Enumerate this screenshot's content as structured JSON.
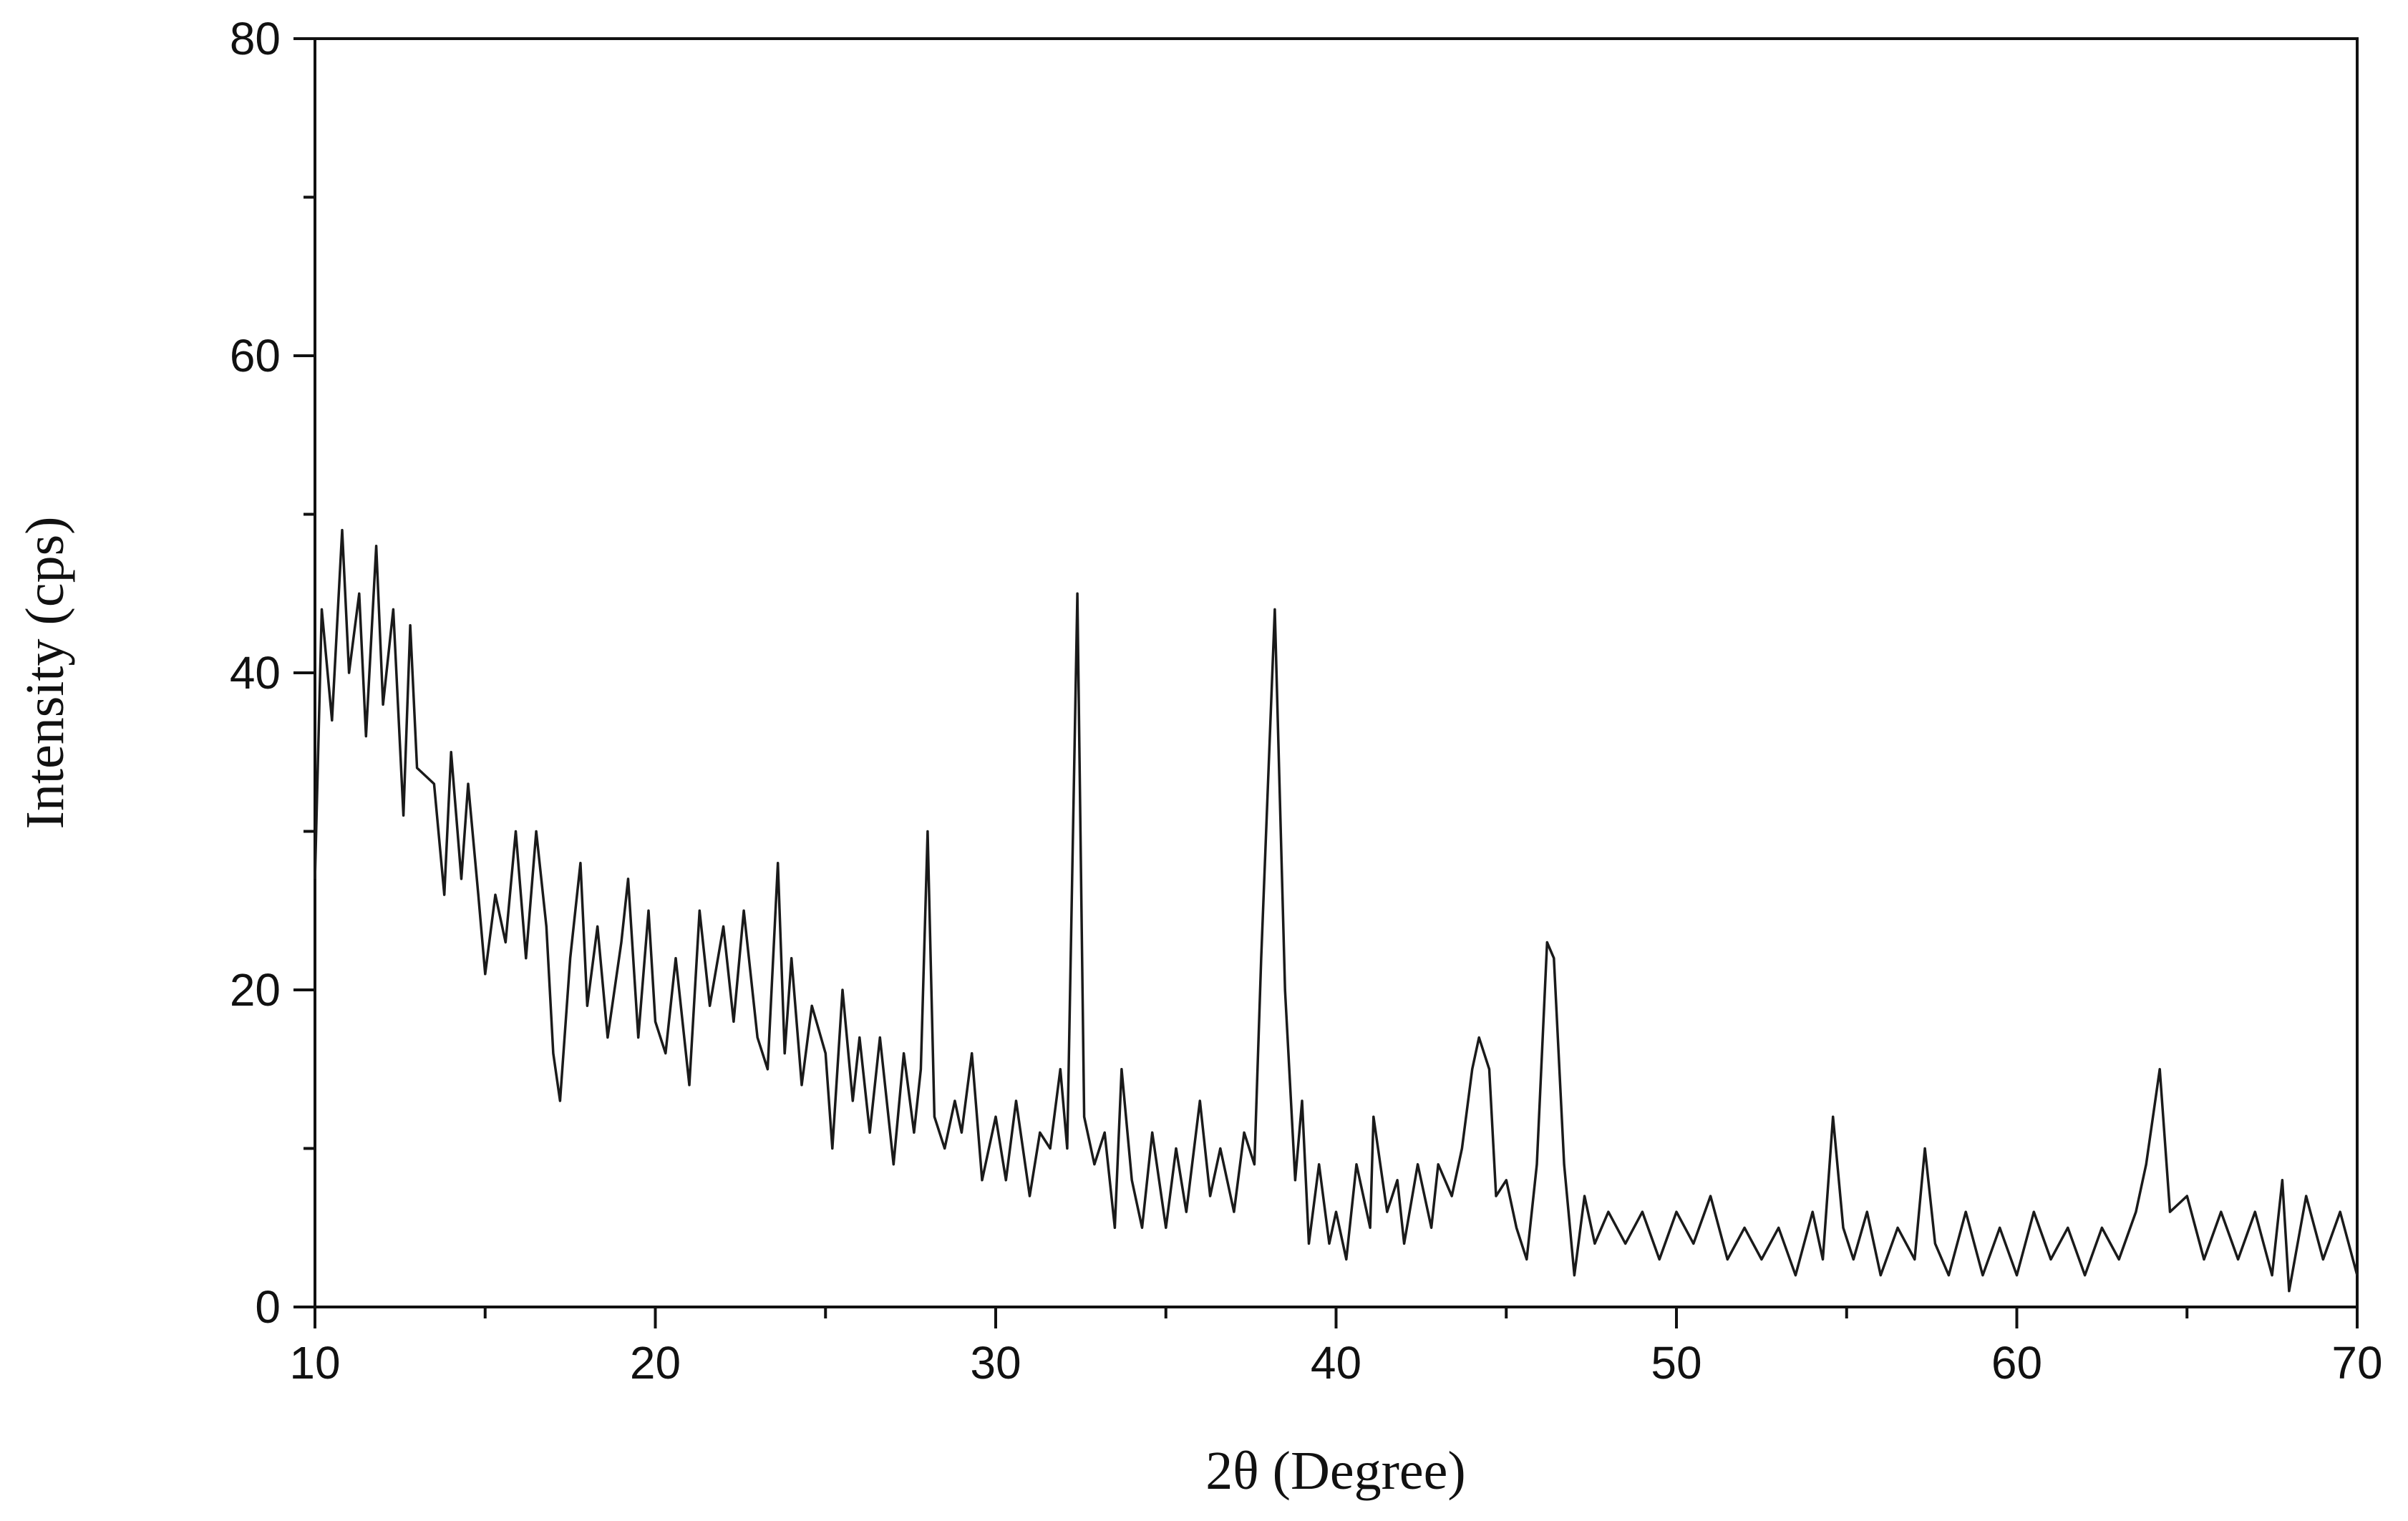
{
  "chart_data": {
    "type": "line",
    "xlabel": "2θ (Degree)",
    "ylabel": "Intensity (cps)",
    "xlim": [
      10,
      70
    ],
    "xticks": [
      10,
      20,
      30,
      40,
      50,
      60,
      70
    ],
    "xminorticks": [
      15,
      25,
      35,
      45,
      55,
      65
    ],
    "ylim": [
      0,
      80
    ],
    "yticks": [
      0,
      20,
      40,
      60,
      80
    ],
    "yminorticks": [
      10,
      30,
      50,
      70
    ],
    "grid": false,
    "color": "#1a1a1a",
    "x": [
      10,
      10.2,
      10.5,
      10.8,
      11,
      11.3,
      11.5,
      11.8,
      12,
      12.3,
      12.6,
      12.8,
      13,
      13.5,
      13.8,
      14,
      14.3,
      14.5,
      14.8,
      15,
      15.3,
      15.6,
      15.9,
      16.2,
      16.5,
      16.8,
      17,
      17.2,
      17.5,
      17.8,
      18,
      18.3,
      18.6,
      19,
      19.2,
      19.5,
      19.8,
      20,
      20.3,
      20.6,
      21,
      21.3,
      21.6,
      22,
      22.3,
      22.6,
      23,
      23.3,
      23.6,
      23.8,
      24,
      24.3,
      24.6,
      25,
      25.2,
      25.5,
      25.8,
      26,
      26.3,
      26.6,
      27,
      27.3,
      27.6,
      27.8,
      28,
      28.2,
      28.5,
      28.8,
      29,
      29.3,
      29.6,
      30,
      30.3,
      30.6,
      31,
      31.3,
      31.6,
      31.9,
      32.1,
      32.4,
      32.6,
      32.9,
      33.2,
      33.5,
      33.7,
      34,
      34.3,
      34.6,
      35,
      35.3,
      35.6,
      36,
      36.3,
      36.6,
      37,
      37.3,
      37.6,
      37.8,
      38.2,
      38.5,
      38.8,
      39,
      39.2,
      39.5,
      39.8,
      40,
      40.3,
      40.6,
      41,
      41.1,
      41.5,
      41.8,
      42,
      42.4,
      42.8,
      43,
      43.4,
      43.7,
      44,
      44.2,
      44.5,
      44.7,
      45,
      45.3,
      45.6,
      45.9,
      46.2,
      46.4,
      46.7,
      47,
      47.3,
      47.6,
      48,
      48.5,
      49,
      49.5,
      50,
      50.5,
      51,
      51.5,
      52,
      52.5,
      53,
      53.5,
      54,
      54.3,
      54.6,
      54.9,
      55.2,
      55.6,
      56,
      56.5,
      57,
      57.3,
      57.6,
      58,
      58.5,
      59,
      59.5,
      60,
      60.5,
      61,
      61.5,
      62,
      62.5,
      63,
      63.5,
      63.8,
      64.2,
      64.5,
      65,
      65.5,
      66,
      66.5,
      67,
      67.5,
      67.8,
      68,
      68.5,
      69,
      69.5,
      70
    ],
    "values": [
      27,
      44,
      37,
      49,
      40,
      45,
      36,
      48,
      38,
      44,
      31,
      43,
      34,
      33,
      26,
      35,
      27,
      33,
      26,
      21,
      26,
      23,
      30,
      22,
      30,
      24,
      16,
      13,
      22,
      28,
      19,
      24,
      17,
      23,
      27,
      17,
      25,
      18,
      16,
      22,
      14,
      25,
      19,
      24,
      18,
      25,
      17,
      15,
      28,
      16,
      22,
      14,
      19,
      16,
      10,
      20,
      13,
      17,
      11,
      17,
      9,
      16,
      11,
      15,
      30,
      12,
      10,
      13,
      11,
      16,
      8,
      12,
      8,
      13,
      7,
      11,
      10,
      15,
      10,
      45,
      12,
      9,
      11,
      5,
      15,
      8,
      5,
      11,
      5,
      10,
      6,
      13,
      7,
      10,
      6,
      11,
      9,
      22,
      44,
      20,
      8,
      13,
      4,
      9,
      4,
      6,
      3,
      9,
      5,
      12,
      6,
      8,
      4,
      9,
      5,
      9,
      7,
      10,
      15,
      17,
      15,
      7,
      8,
      5,
      3,
      9,
      23,
      22,
      9,
      2,
      7,
      4,
      6,
      4,
      6,
      3,
      6,
      4,
      7,
      3,
      5,
      3,
      5,
      2,
      6,
      3,
      12,
      5,
      3,
      6,
      2,
      5,
      3,
      10,
      4,
      2,
      6,
      2,
      5,
      2,
      6,
      3,
      5,
      2,
      5,
      3,
      6,
      9,
      15,
      6,
      7,
      3,
      6,
      3,
      6,
      2,
      8,
      1,
      7,
      3,
      6,
      2
    ]
  }
}
